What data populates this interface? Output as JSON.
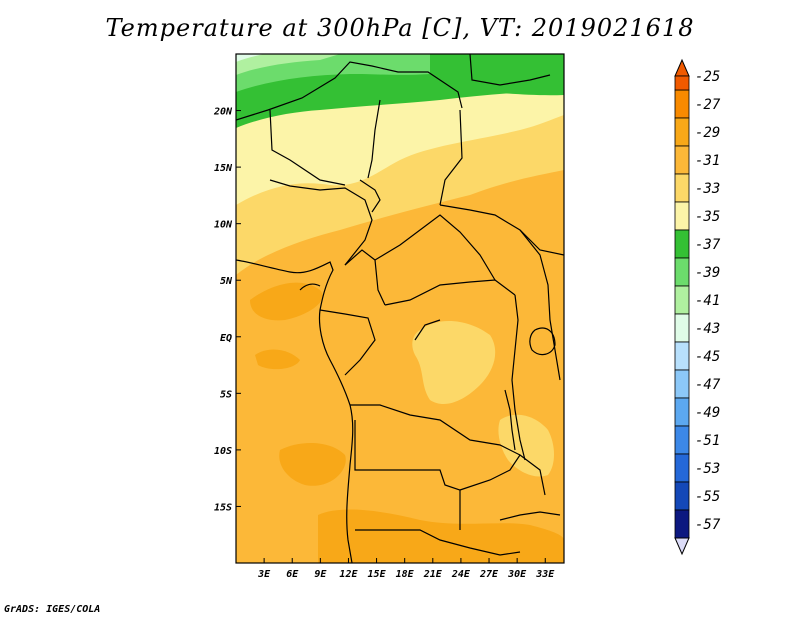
{
  "title": "Temperature at 300hPa [C], VT: 2019021618",
  "credit": "GrADS: IGES/COLA",
  "map": {
    "lon_range": [
      0,
      35
    ],
    "lat_range": [
      -20,
      25
    ],
    "lon_ticks": [
      {
        "value": 3,
        "label": "3E"
      },
      {
        "value": 6,
        "label": "6E"
      },
      {
        "value": 9,
        "label": "9E"
      },
      {
        "value": 12,
        "label": "12E"
      },
      {
        "value": 15,
        "label": "15E"
      },
      {
        "value": 18,
        "label": "18E"
      },
      {
        "value": 21,
        "label": "21E"
      },
      {
        "value": 24,
        "label": "24E"
      },
      {
        "value": 27,
        "label": "27E"
      },
      {
        "value": 30,
        "label": "30E"
      },
      {
        "value": 33,
        "label": "33E"
      }
    ],
    "lat_ticks": [
      {
        "value": 20,
        "label": "20N"
      },
      {
        "value": 15,
        "label": "15N"
      },
      {
        "value": 10,
        "label": "10N"
      },
      {
        "value": 5,
        "label": "5N"
      },
      {
        "value": 0,
        "label": "EQ"
      },
      {
        "value": -5,
        "label": "5S"
      },
      {
        "value": -10,
        "label": "10S"
      },
      {
        "value": -15,
        "label": "15S"
      }
    ]
  },
  "colorbar": {
    "labels": [
      "-25",
      "-27",
      "-29",
      "-31",
      "-33",
      "-35",
      "-37",
      "-39",
      "-41",
      "-43",
      "-45",
      "-47",
      "-49",
      "-51",
      "-53",
      "-55",
      "-57"
    ],
    "colors": [
      "#f05a00",
      "#f88a00",
      "#f8a818",
      "#fcb838",
      "#fcd868",
      "#fcf4a8",
      "#34c034",
      "#6cdc6c",
      "#b0f0a0",
      "#e0fce8",
      "#b8e0fc",
      "#8cc8f8",
      "#5ca8f0",
      "#3c88e8",
      "#2468d8",
      "#1448b8",
      "#0c1880",
      "#dcdcf8"
    ],
    "top_color": "#f05a00",
    "bottom_color": "#dcdcf8"
  },
  "colors": {
    "land_warm": "#fcb838",
    "frame": "#000000"
  }
}
